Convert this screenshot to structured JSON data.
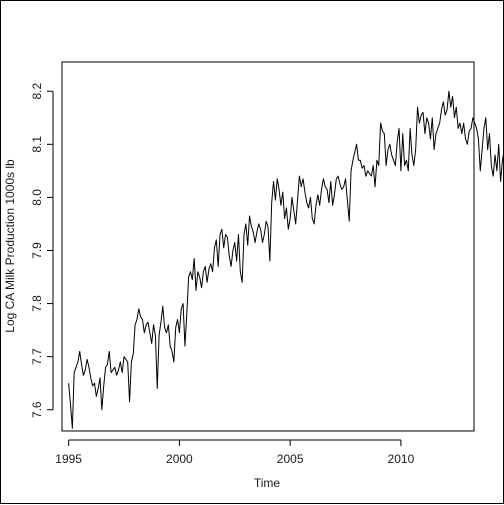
{
  "chart_data": {
    "type": "line",
    "xlabel": "Time",
    "ylabel": "Log CA Milk Production 1000s lb",
    "xlim": [
      1994.7,
      2013.3
    ],
    "ylim": [
      7.56,
      8.255
    ],
    "x_ticks": [
      1995,
      2000,
      2005,
      2010
    ],
    "x_tick_labels": [
      "1995",
      "2000",
      "2005",
      "2010"
    ],
    "y_ticks": [
      7.6,
      7.7,
      7.8,
      7.9,
      8.0,
      8.1,
      8.2
    ],
    "y_tick_labels": [
      "7.6",
      "7.7",
      "7.8",
      "7.9",
      "8.0",
      "8.1",
      "8.2"
    ],
    "series": [
      {
        "start": 1995.0,
        "frequency": 12,
        "values": [
          7.65,
          7.61,
          7.565,
          7.67,
          7.68,
          7.69,
          7.71,
          7.685,
          7.665,
          7.675,
          7.695,
          7.68,
          7.66,
          7.645,
          7.65,
          7.625,
          7.64,
          7.66,
          7.6,
          7.645,
          7.68,
          7.685,
          7.71,
          7.67,
          7.675,
          7.68,
          7.665,
          7.675,
          7.69,
          7.67,
          7.7,
          7.695,
          7.69,
          7.615,
          7.69,
          7.705,
          7.76,
          7.77,
          7.79,
          7.775,
          7.77,
          7.745,
          7.76,
          7.765,
          7.745,
          7.725,
          7.76,
          7.74,
          7.64,
          7.74,
          7.765,
          7.795,
          7.755,
          7.745,
          7.76,
          7.72,
          7.71,
          7.69,
          7.755,
          7.77,
          7.745,
          7.79,
          7.8,
          7.72,
          7.78,
          7.85,
          7.86,
          7.845,
          7.885,
          7.825,
          7.86,
          7.85,
          7.83,
          7.86,
          7.87,
          7.84,
          7.865,
          7.875,
          7.86,
          7.905,
          7.92,
          7.87,
          7.93,
          7.94,
          7.905,
          7.93,
          7.925,
          7.89,
          7.87,
          7.9,
          7.915,
          7.88,
          7.93,
          7.86,
          7.84,
          7.93,
          7.95,
          7.91,
          7.965,
          7.945,
          7.935,
          7.915,
          7.935,
          7.95,
          7.94,
          7.915,
          7.93,
          7.955,
          7.945,
          7.88,
          7.99,
          8.03,
          7.995,
          8.035,
          8.015,
          7.985,
          8.01,
          7.96,
          7.98,
          7.94,
          7.96,
          8.0,
          7.975,
          7.95,
          7.995,
          8.04,
          8.02,
          8.035,
          8.01,
          7.99,
          7.98,
          8.0,
          7.96,
          7.95,
          7.985,
          8.005,
          7.985,
          8.015,
          8.035,
          8.02,
          8.015,
          7.99,
          8.03,
          7.985,
          8.005,
          8.035,
          8.04,
          8.025,
          8.015,
          8.02,
          8.035,
          7.995,
          7.955,
          8.05,
          8.07,
          8.085,
          8.1,
          8.07,
          8.07,
          8.055,
          8.06,
          8.04,
          8.05,
          8.045,
          8.04,
          8.06,
          8.02,
          8.07,
          8.06,
          8.14,
          8.125,
          8.12,
          8.06,
          8.09,
          8.1,
          8.08,
          8.07,
          8.06,
          8.105,
          8.13,
          8.05,
          8.12,
          8.06,
          8.07,
          8.05,
          8.13,
          8.08,
          8.06,
          8.09,
          8.17,
          8.14,
          8.155,
          8.16,
          8.12,
          8.15,
          8.14,
          8.11,
          8.15,
          8.09,
          8.12,
          8.13,
          8.14,
          8.165,
          8.18,
          8.155,
          8.165,
          8.2,
          8.17,
          8.19,
          8.15,
          8.17,
          8.13,
          8.14,
          8.12,
          8.14,
          8.11,
          8.1,
          8.125,
          8.13,
          8.15,
          8.14,
          8.13,
          8.11,
          8.05,
          8.09,
          8.13,
          8.15,
          8.09,
          8.12,
          8.06,
          8.04,
          8.08,
          8.05,
          8.1,
          8.03,
          8.07,
          8.09,
          8.08,
          8.04,
          8.06,
          8.09,
          8.12,
          8.19,
          8.14,
          8.16,
          8.13,
          8.08,
          8.12,
          8.09,
          8.12,
          8.11,
          8.13,
          8.09,
          8.1,
          8.11,
          8.13,
          8.11,
          8.08,
          8.06,
          8.11,
          8.13,
          8.12,
          8.12,
          8.12,
          8.18,
          8.19,
          8.21,
          8.19,
          8.18,
          8.15,
          8.14,
          8.12,
          8.11,
          8.13,
          8.14,
          8.16,
          8.18,
          8.2,
          8.24,
          8.245,
          8.22,
          8.2,
          8.21,
          8.17,
          8.16,
          8.14,
          8.15,
          8.1,
          8.07,
          8.08,
          8.105,
          8.09,
          8.1,
          8.12,
          8.14
        ]
      }
    ],
    "grid": false,
    "legend": false,
    "line_color": "#000000"
  }
}
